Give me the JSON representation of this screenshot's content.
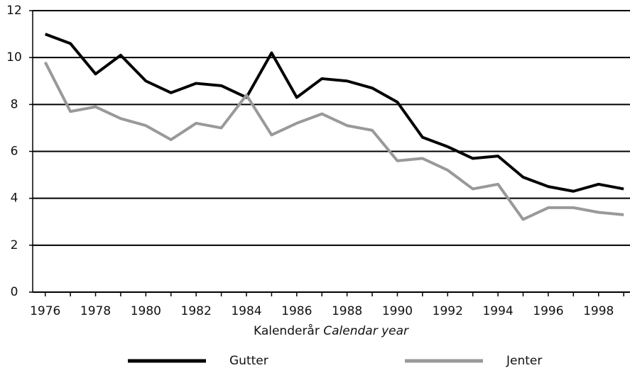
{
  "chart_data": {
    "type": "line",
    "x_label": "Kalenderår",
    "x_label_en": "Calendar year",
    "x": [
      1976,
      1977,
      1978,
      1979,
      1980,
      1981,
      1982,
      1983,
      1984,
      1985,
      1986,
      1987,
      1988,
      1989,
      1990,
      1991,
      1992,
      1993,
      1994,
      1995,
      1996,
      1997,
      1998,
      1999
    ],
    "series": [
      {
        "name": "Gutter",
        "color": "#000000",
        "values": [
          11.0,
          10.6,
          9.3,
          10.1,
          9.0,
          8.5,
          8.9,
          8.8,
          8.3,
          10.2,
          8.3,
          9.1,
          9.0,
          8.7,
          8.1,
          6.6,
          6.2,
          5.7,
          5.8,
          4.9,
          4.5,
          4.3,
          4.6,
          4.4
        ]
      },
      {
        "name": "Jenter",
        "color": "#999999",
        "values": [
          9.8,
          7.7,
          7.9,
          7.4,
          7.1,
          6.5,
          7.2,
          7.0,
          8.4,
          6.7,
          7.2,
          7.6,
          7.1,
          6.9,
          5.6,
          5.7,
          5.2,
          4.4,
          4.6,
          3.1,
          3.6,
          3.6,
          3.4,
          3.3
        ]
      }
    ],
    "xlim": [
      1975.5,
      1999.25
    ],
    "xticks": [
      1976,
      1978,
      1980,
      1982,
      1984,
      1986,
      1988,
      1990,
      1992,
      1994,
      1996,
      1998
    ],
    "ylim": [
      0,
      12
    ],
    "yticks": [
      0,
      2,
      4,
      6,
      8,
      10,
      12
    ],
    "grid": true,
    "legend": "bottom"
  }
}
